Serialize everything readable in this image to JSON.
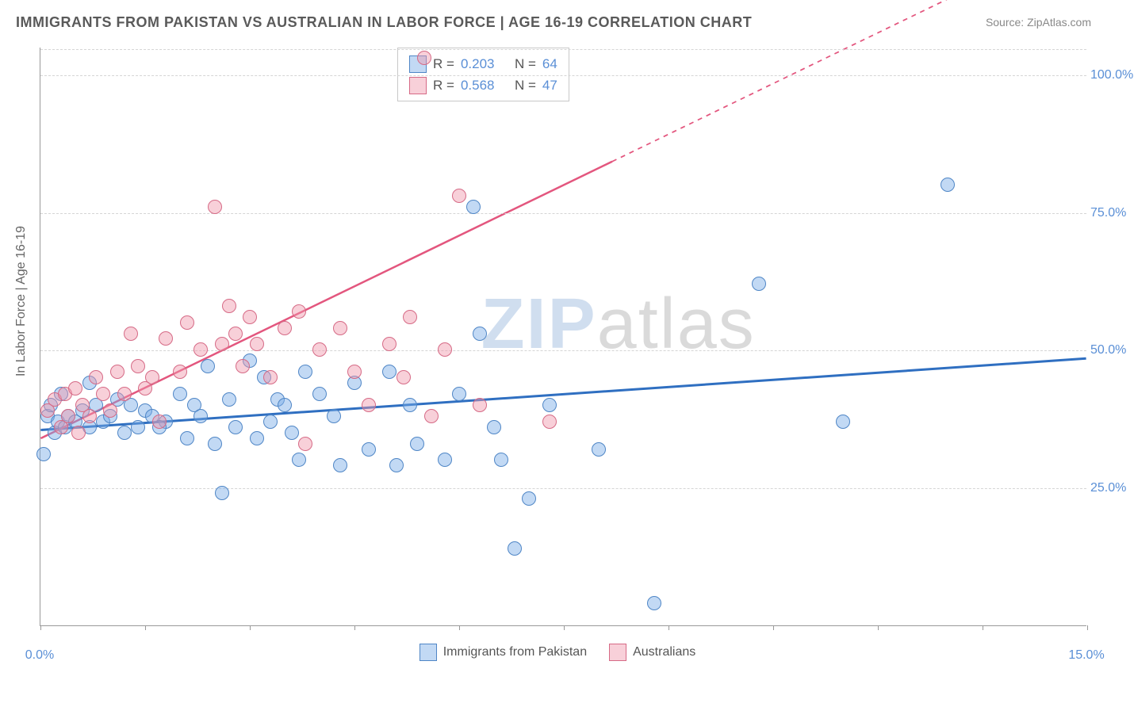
{
  "title": "IMMIGRANTS FROM PAKISTAN VS AUSTRALIAN IN LABOR FORCE | AGE 16-19 CORRELATION CHART",
  "source_label": "Source: ",
  "source_name": "ZipAtlas.com",
  "watermark": {
    "part1": "ZIP",
    "part2": "atlas"
  },
  "yaxis_label": "In Labor Force | Age 16-19",
  "chart": {
    "type": "scatter",
    "xlim": [
      0,
      15
    ],
    "ylim": [
      0,
      105
    ],
    "x_ticks": [
      0,
      1.5,
      3,
      4.5,
      6,
      7.5,
      9,
      10.5,
      12,
      13.5,
      15
    ],
    "x_tick_labels": {
      "0": "0.0%",
      "15": "15.0%"
    },
    "y_gridlines": [
      25,
      50,
      75,
      100
    ],
    "y_tick_labels": {
      "25": "25.0%",
      "50": "50.0%",
      "75": "75.0%",
      "100": "100.0%"
    },
    "background_color": "#ffffff",
    "grid_color": "#d5d5d5",
    "axis_color": "#999999",
    "label_color": "#5a8fd6",
    "label_fontsize": 16,
    "title_color": "#5a5a5a",
    "title_fontsize": 18,
    "point_radius": 9,
    "series": [
      {
        "key": "pakistan",
        "name": "Immigrants from Pakistan",
        "fill": "rgba(120,170,230,0.45)",
        "stroke": "#4f86c6",
        "R": "0.203",
        "N": "64",
        "trend": {
          "x1": 0,
          "y1": 35.5,
          "x2": 15,
          "y2": 48.5,
          "solid_until_x": 15,
          "color": "#2f6fc1",
          "width": 3
        },
        "points": [
          [
            0.05,
            31
          ],
          [
            0.1,
            38
          ],
          [
            0.15,
            40
          ],
          [
            0.2,
            35
          ],
          [
            0.25,
            37
          ],
          [
            0.3,
            42
          ],
          [
            0.35,
            36
          ],
          [
            0.4,
            38
          ],
          [
            0.5,
            37
          ],
          [
            0.6,
            39
          ],
          [
            0.7,
            36
          ],
          [
            0.8,
            40
          ],
          [
            0.9,
            37
          ],
          [
            1.0,
            38
          ],
          [
            1.1,
            41
          ],
          [
            1.2,
            35
          ],
          [
            1.3,
            40
          ],
          [
            1.4,
            36
          ],
          [
            1.5,
            39
          ],
          [
            1.6,
            38
          ],
          [
            1.8,
            37
          ],
          [
            2.0,
            42
          ],
          [
            2.1,
            34
          ],
          [
            2.2,
            40
          ],
          [
            2.4,
            47
          ],
          [
            2.5,
            33
          ],
          [
            2.6,
            24
          ],
          [
            2.7,
            41
          ],
          [
            2.8,
            36
          ],
          [
            3.0,
            48
          ],
          [
            3.1,
            34
          ],
          [
            3.2,
            45
          ],
          [
            3.3,
            37
          ],
          [
            3.4,
            41
          ],
          [
            3.6,
            35
          ],
          [
            3.7,
            30
          ],
          [
            3.8,
            46
          ],
          [
            4.0,
            42
          ],
          [
            4.2,
            38
          ],
          [
            4.3,
            29
          ],
          [
            4.5,
            44
          ],
          [
            4.7,
            32
          ],
          [
            5.0,
            46
          ],
          [
            5.1,
            29
          ],
          [
            5.3,
            40
          ],
          [
            5.4,
            33
          ],
          [
            5.8,
            30
          ],
          [
            6.0,
            42
          ],
          [
            6.2,
            76
          ],
          [
            6.3,
            53
          ],
          [
            6.5,
            36
          ],
          [
            6.6,
            30
          ],
          [
            6.8,
            14
          ],
          [
            7.0,
            23
          ],
          [
            7.3,
            40
          ],
          [
            8.0,
            32
          ],
          [
            8.8,
            4
          ],
          [
            10.3,
            62
          ],
          [
            11.5,
            37
          ],
          [
            13.0,
            80
          ],
          [
            0.7,
            44
          ],
          [
            1.7,
            36
          ],
          [
            2.3,
            38
          ],
          [
            3.5,
            40
          ]
        ]
      },
      {
        "key": "australians",
        "name": "Australians",
        "fill": "rgba(240,150,170,0.45)",
        "stroke": "#d66a86",
        "R": "0.568",
        "N": "47",
        "trend": {
          "x1": 0,
          "y1": 34,
          "x2": 15,
          "y2": 126,
          "solid_until_x": 8.2,
          "color": "#e3567e",
          "width": 2.5
        },
        "points": [
          [
            0.1,
            39
          ],
          [
            0.2,
            41
          ],
          [
            0.3,
            36
          ],
          [
            0.35,
            42
          ],
          [
            0.4,
            38
          ],
          [
            0.5,
            43
          ],
          [
            0.55,
            35
          ],
          [
            0.6,
            40
          ],
          [
            0.7,
            38
          ],
          [
            0.8,
            45
          ],
          [
            0.9,
            42
          ],
          [
            1.0,
            39
          ],
          [
            1.1,
            46
          ],
          [
            1.2,
            42
          ],
          [
            1.3,
            53
          ],
          [
            1.4,
            47
          ],
          [
            1.5,
            43
          ],
          [
            1.6,
            45
          ],
          [
            1.7,
            37
          ],
          [
            1.8,
            52
          ],
          [
            2.0,
            46
          ],
          [
            2.1,
            55
          ],
          [
            2.3,
            50
          ],
          [
            2.5,
            76
          ],
          [
            2.6,
            51
          ],
          [
            2.7,
            58
          ],
          [
            2.8,
            53
          ],
          [
            2.9,
            47
          ],
          [
            3.0,
            56
          ],
          [
            3.1,
            51
          ],
          [
            3.3,
            45
          ],
          [
            3.5,
            54
          ],
          [
            3.7,
            57
          ],
          [
            3.8,
            33
          ],
          [
            4.0,
            50
          ],
          [
            4.3,
            54
          ],
          [
            4.5,
            46
          ],
          [
            4.7,
            40
          ],
          [
            5.0,
            51
          ],
          [
            5.2,
            45
          ],
          [
            5.5,
            103
          ],
          [
            5.6,
            38
          ],
          [
            5.8,
            50
          ],
          [
            6.0,
            78
          ],
          [
            6.3,
            40
          ],
          [
            7.3,
            37
          ],
          [
            5.3,
            56
          ]
        ]
      }
    ]
  },
  "legend_top": {
    "R_label": "R = ",
    "N_label": "N = "
  },
  "legend_bottom_labels": [
    "Immigrants from Pakistan",
    "Australians"
  ]
}
